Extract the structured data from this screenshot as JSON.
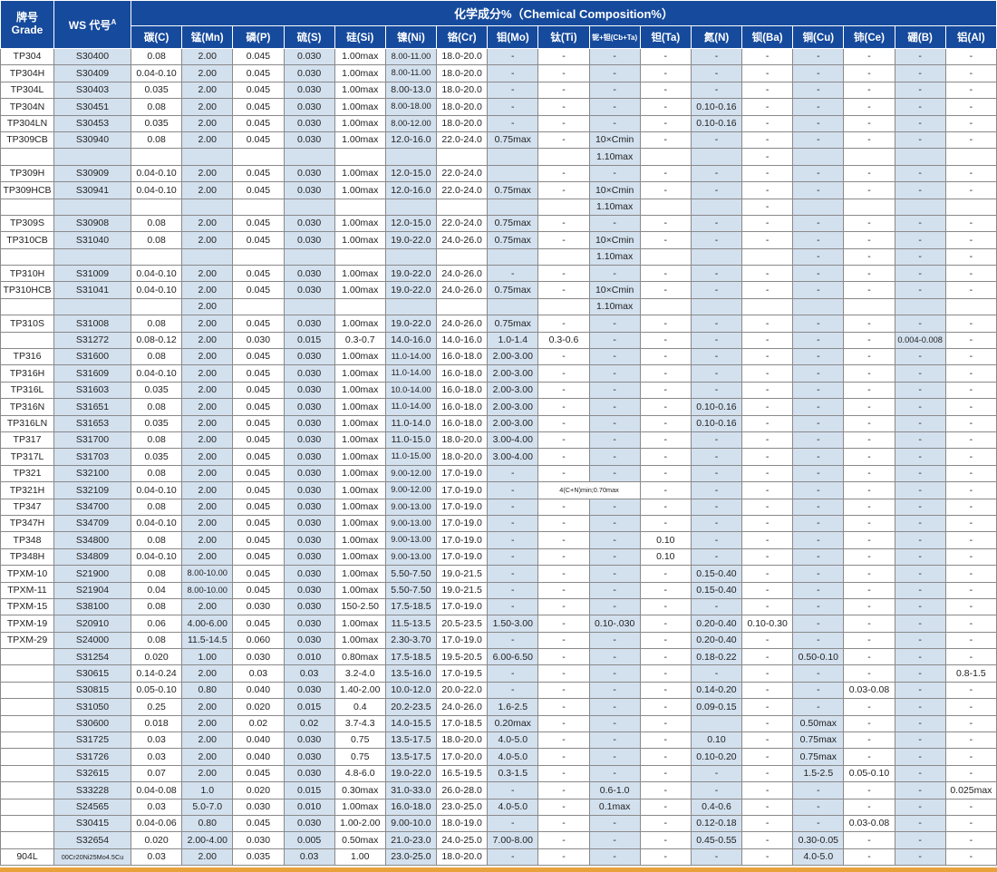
{
  "colors": {
    "header_blue": "#164a9c",
    "stripe_blue": "#d3e0ee",
    "grid_gray": "#898989",
    "text_dark": "#222222",
    "accent_orange": "#e9a23b"
  },
  "table": {
    "grade_label": "牌号",
    "grade_sublabel": "Grade",
    "ws_label": "WS 代号",
    "ws_superscript": "A",
    "composition_label": "化学成分%（Chemical Composition%）",
    "columns": [
      "碳(C)",
      "锰(Mn)",
      "磷(P)",
      "硫(S)",
      "硅(Si)",
      "镍(Ni)",
      "铬(Cr)",
      "钼(Mo)",
      "钛(Ti)",
      "铌+钽(Cb+Ta)",
      "钽(Ta)",
      "氮(N)",
      "钡(Ba)",
      "铜(Cu)",
      "铈(Ce)",
      "硼(B)",
      "铝(Al)"
    ],
    "rows": [
      [
        "TP304",
        "S30400",
        "0.08",
        "2.00",
        "0.045",
        "0.030",
        "1.00max",
        "8.00-11.00",
        "18.0-20.0",
        "-",
        "-",
        "-",
        "-",
        "-",
        "-",
        "-",
        "-",
        "-",
        "-"
      ],
      [
        "TP304H",
        "S30409",
        "0.04-0.10",
        "2.00",
        "0.045",
        "0.030",
        "1.00max",
        "8.00-11.00",
        "18.0-20.0",
        "-",
        "-",
        "-",
        "-",
        "-",
        "-",
        "-",
        "-",
        "-",
        "-"
      ],
      [
        "TP304L",
        "S30403",
        "0.035",
        "2.00",
        "0.045",
        "0.030",
        "1.00max",
        "8.00-13.0",
        "18.0-20.0",
        "-",
        "-",
        "-",
        "-",
        "-",
        "-",
        "-",
        "-",
        "-",
        "-"
      ],
      [
        "TP304N",
        "S30451",
        "0.08",
        "2.00",
        "0.045",
        "0.030",
        "1.00max",
        "8.00-18.00",
        "18.0-20.0",
        "-",
        "-",
        "-",
        "-",
        "0.10-0.16",
        "-",
        "-",
        "-",
        "-",
        "-"
      ],
      [
        "TP304LN",
        "S30453",
        "0.035",
        "2.00",
        "0.045",
        "0.030",
        "1.00max",
        "8.00-12.00",
        "18.0-20.0",
        "-",
        "-",
        "-",
        "-",
        "0.10-0.16",
        "-",
        "-",
        "-",
        "-",
        "-"
      ],
      [
        "TP309CB",
        "S30940",
        "0.08",
        "2.00",
        "0.045",
        "0.030",
        "1.00max",
        "12.0-16.0",
        "22.0-24.0",
        "0.75max",
        "-",
        "10×Cmin",
        "-",
        "-",
        "-",
        "-",
        "-",
        "-",
        "-"
      ],
      [
        "",
        "",
        "",
        "",
        "",
        "",
        "",
        "",
        "",
        "",
        "",
        "1.10max",
        "",
        "",
        "-",
        "",
        "",
        "",
        ""
      ],
      [
        "TP309H",
        "S30909",
        "0.04-0.10",
        "2.00",
        "0.045",
        "0.030",
        "1.00max",
        "12.0-15.0",
        "22.0-24.0",
        "",
        "-",
        "-",
        "-",
        "-",
        "-",
        "-",
        "-",
        "-",
        "-"
      ],
      [
        "TP309HCB",
        "S30941",
        "0.04-0.10",
        "2.00",
        "0.045",
        "0.030",
        "1.00max",
        "12.0-16.0",
        "22.0-24.0",
        "0.75max",
        "-",
        "10×Cmin",
        "-",
        "-",
        "-",
        "-",
        "-",
        "-",
        "-"
      ],
      [
        "",
        "",
        "",
        "",
        "",
        "",
        "",
        "",
        "",
        "",
        "",
        "1.10max",
        "",
        "",
        "-",
        "",
        "",
        "",
        ""
      ],
      [
        "TP309S",
        "S30908",
        "0.08",
        "2.00",
        "0.045",
        "0.030",
        "1.00max",
        "12.0-15.0",
        "22.0-24.0",
        "0.75max",
        "-",
        "-",
        "-",
        "-",
        "-",
        "-",
        "-",
        "-",
        "-"
      ],
      [
        "TP310CB",
        "S31040",
        "0.08",
        "2.00",
        "0.045",
        "0.030",
        "1.00max",
        "19.0-22.0",
        "24.0-26.0",
        "0.75max",
        "-",
        "10×Cmin",
        "-",
        "-",
        "-",
        "-",
        "-",
        "-",
        "-"
      ],
      [
        "",
        "",
        "",
        "",
        "",
        "",
        "",
        "",
        "",
        "",
        "",
        "1.10max",
        "",
        "",
        "",
        "-",
        "-",
        "-",
        "-"
      ],
      [
        "TP310H",
        "S31009",
        "0.04-0.10",
        "2.00",
        "0.045",
        "0.030",
        "1.00max",
        "19.0-22.0",
        "24.0-26.0",
        "-",
        "-",
        "-",
        "-",
        "-",
        "-",
        "-",
        "-",
        "-",
        "-"
      ],
      [
        "TP310HCB",
        "S31041",
        "0.04-0.10",
        "2.00",
        "0.045",
        "0.030",
        "1.00max",
        "19.0-22.0",
        "24.0-26.0",
        "0.75max",
        "-",
        "10×Cmin",
        "-",
        "-",
        "-",
        "-",
        "-",
        "-",
        "-"
      ],
      [
        "",
        "",
        "",
        "2.00",
        "",
        "",
        "",
        "",
        "",
        "",
        "",
        "1.10max",
        "",
        "",
        "",
        "",
        "",
        "",
        ""
      ],
      [
        "TP310S",
        "S31008",
        "0.08",
        "2.00",
        "0.045",
        "0.030",
        "1.00max",
        "19.0-22.0",
        "24.0-26.0",
        "0.75max",
        "-",
        "-",
        "-",
        "-",
        "-",
        "-",
        "-",
        "-",
        "-"
      ],
      [
        "",
        "S31272",
        "0.08-0.12",
        "2.00",
        "0.030",
        "0.015",
        "0.3-0.7",
        "14.0-16.0",
        "14.0-16.0",
        "1.0-1.4",
        "0.3-0.6",
        "-",
        "-",
        "-",
        "-",
        "-",
        "-",
        "0.004-0.008",
        "-"
      ],
      [
        "TP316",
        "S31600",
        "0.08",
        "2.00",
        "0.045",
        "0.030",
        "1.00max",
        "11.0-14.00",
        "16.0-18.0",
        "2.00-3.00",
        "-",
        "-",
        "-",
        "-",
        "-",
        "-",
        "-",
        "-",
        "-"
      ],
      [
        "TP316H",
        "S31609",
        "0.04-0.10",
        "2.00",
        "0.045",
        "0.030",
        "1.00max",
        "11.0-14.00",
        "16.0-18.0",
        "2.00-3.00",
        "-",
        "-",
        "-",
        "-",
        "-",
        "-",
        "-",
        "-",
        "-"
      ],
      [
        "TP316L",
        "S31603",
        "0.035",
        "2.00",
        "0.045",
        "0.030",
        "1.00max",
        "10.0-14.00",
        "16.0-18.0",
        "2.00-3.00",
        "-",
        "-",
        "-",
        "-",
        "-",
        "-",
        "-",
        "-",
        "-"
      ],
      [
        "TP316N",
        "S31651",
        "0.08",
        "2.00",
        "0.045",
        "0.030",
        "1.00max",
        "11.0-14.00",
        "16.0-18.0",
        "2.00-3.00",
        "-",
        "-",
        "-",
        "0.10-0.16",
        "-",
        "-",
        "-",
        "-",
        "-"
      ],
      [
        "TP316LN",
        "S31653",
        "0.035",
        "2.00",
        "0.045",
        "0.030",
        "1.00max",
        "11.0-14.0",
        "16.0-18.0",
        "2.00-3.00",
        "-",
        "-",
        "-",
        "0.10-0.16",
        "-",
        "-",
        "-",
        "-",
        "-"
      ],
      [
        "TP317",
        "S31700",
        "0.08",
        "2.00",
        "0.045",
        "0.030",
        "1.00max",
        "11.0-15.0",
        "18.0-20.0",
        "3.00-4.00",
        "-",
        "-",
        "-",
        "-",
        "-",
        "-",
        "-",
        "-",
        "-"
      ],
      [
        "TP317L",
        "S31703",
        "0.035",
        "2.00",
        "0.045",
        "0.030",
        "1.00max",
        "11.0-15.00",
        "18.0-20.0",
        "3.00-4.00",
        "-",
        "-",
        "-",
        "-",
        "-",
        "-",
        "-",
        "-",
        "-"
      ],
      [
        "TP321",
        "S32100",
        "0.08",
        "2.00",
        "0.045",
        "0.030",
        "1.00max",
        "9.00-12.00",
        "17.0-19.0",
        "-",
        "-",
        "-",
        "-",
        "-",
        "-",
        "-",
        "-",
        "-",
        "-"
      ],
      [
        "TP321H",
        "S32109",
        "0.04-0.10",
        "2.00",
        "0.045",
        "0.030",
        "1.00max",
        "9.00-12.00",
        "17.0-19.0",
        "-",
        "4(C+N)min;0.70max",
        "",
        "-",
        "-",
        "-",
        "-",
        "-",
        "-",
        "-"
      ],
      [
        "TP347",
        "S34700",
        "0.08",
        "2.00",
        "0.045",
        "0.030",
        "1.00max",
        "9.00-13.00",
        "17.0-19.0",
        "-",
        "-",
        "-",
        "-",
        "-",
        "-",
        "-",
        "-",
        "-",
        "-"
      ],
      [
        "TP347H",
        "S34709",
        "0.04-0.10",
        "2.00",
        "0.045",
        "0.030",
        "1.00max",
        "9.00-13.00",
        "17.0-19.0",
        "-",
        "-",
        "-",
        "-",
        "-",
        "-",
        "-",
        "-",
        "-",
        "-"
      ],
      [
        "TP348",
        "S34800",
        "0.08",
        "2.00",
        "0.045",
        "0.030",
        "1.00max",
        "9.00-13.00",
        "17.0-19.0",
        "-",
        "-",
        "-",
        "0.10",
        "-",
        "-",
        "-",
        "-",
        "-",
        "-"
      ],
      [
        "TP348H",
        "S34809",
        "0.04-0.10",
        "2.00",
        "0.045",
        "0.030",
        "1.00max",
        "9.00-13.00",
        "17.0-19.0",
        "-",
        "-",
        "-",
        "0.10",
        "-",
        "-",
        "-",
        "-",
        "-",
        "-"
      ],
      [
        "TPXM-10",
        "S21900",
        "0.08",
        "8.00-10.00",
        "0.045",
        "0.030",
        "1.00max",
        "5.50-7.50",
        "19.0-21.5",
        "-",
        "-",
        "-",
        "-",
        "0.15-0.40",
        "-",
        "-",
        "-",
        "-",
        "-"
      ],
      [
        "TPXM-11",
        "S21904",
        "0.04",
        "8.00-10.00",
        "0.045",
        "0.030",
        "1.00max",
        "5.50-7.50",
        "19.0-21.5",
        "-",
        "-",
        "-",
        "-",
        "0.15-0.40",
        "-",
        "-",
        "-",
        "-",
        "-"
      ],
      [
        "TPXM-15",
        "S38100",
        "0.08",
        "2.00",
        "0.030",
        "0.030",
        "150-2.50",
        "17.5-18.5",
        "17.0-19.0",
        "-",
        "-",
        "-",
        "-",
        "-",
        "-",
        "-",
        "-",
        "-",
        "-"
      ],
      [
        "TPXM-19",
        "S20910",
        "0.06",
        "4.00-6.00",
        "0.045",
        "0.030",
        "1.00max",
        "11.5-13.5",
        "20.5-23.5",
        "1.50-3.00",
        "-",
        "0.10-.030",
        "-",
        "0.20-0.40",
        "0.10-0.30",
        "-",
        "-",
        "-",
        "-"
      ],
      [
        "TPXM-29",
        "S24000",
        "0.08",
        "11.5-14.5",
        "0.060",
        "0.030",
        "1.00max",
        "2.30-3.70",
        "17.0-19.0",
        "-",
        "-",
        "-",
        "-",
        "0.20-0.40",
        "-",
        "-",
        "-",
        "-",
        "-"
      ],
      [
        "",
        "S31254",
        "0.020",
        "1.00",
        "0.030",
        "0.010",
        "0.80max",
        "17.5-18.5",
        "19.5-20.5",
        "6.00-6.50",
        "-",
        "-",
        "-",
        "0.18-0.22",
        "-",
        "0.50-0.10",
        "-",
        "-",
        "-"
      ],
      [
        "",
        "S30615",
        "0.14-0.24",
        "2.00",
        "0.03",
        "0.03",
        "3.2-4.0",
        "13.5-16.0",
        "17.0-19.5",
        "-",
        "-",
        "-",
        "-",
        "-",
        "-",
        "-",
        "-",
        "-",
        "0.8-1.5"
      ],
      [
        "",
        "S30815",
        "0.05-0.10",
        "0.80",
        "0.040",
        "0.030",
        "1.40-2.00",
        "10.0-12.0",
        "20.0-22.0",
        "-",
        "-",
        "-",
        "-",
        "0.14-0.20",
        "-",
        "-",
        "0.03-0.08",
        "-",
        "-"
      ],
      [
        "",
        "S31050",
        "0.25",
        "2.00",
        "0.020",
        "0.015",
        "0.4",
        "20.2-23.5",
        "24.0-26.0",
        "1.6-2.5",
        "-",
        "-",
        "-",
        "0.09-0.15",
        "-",
        "-",
        "-",
        "-",
        "-"
      ],
      [
        "",
        "S30600",
        "0.018",
        "2.00",
        "0.02",
        "0.02",
        "3.7-4.3",
        "14.0-15.5",
        "17.0-18.5",
        "0.20max",
        "-",
        "-",
        "-",
        "",
        "-",
        "0.50max",
        "-",
        "-",
        "-"
      ],
      [
        "",
        "S31725",
        "0.03",
        "2.00",
        "0.040",
        "0.030",
        "0.75",
        "13.5-17.5",
        "18.0-20.0",
        "4.0-5.0",
        "-",
        "-",
        "-",
        "0.10",
        "-",
        "0.75max",
        "-",
        "-",
        "-"
      ],
      [
        "",
        "S31726",
        "0.03",
        "2.00",
        "0.040",
        "0.030",
        "0.75",
        "13.5-17.5",
        "17.0-20.0",
        "4.0-5.0",
        "-",
        "-",
        "-",
        "0.10-0.20",
        "-",
        "0.75max",
        "-",
        "-",
        "-"
      ],
      [
        "",
        "S32615",
        "0.07",
        "2.00",
        "0.045",
        "0.030",
        "4.8-6.0",
        "19.0-22.0",
        "16.5-19.5",
        "0.3-1.5",
        "-",
        "-",
        "-",
        "-",
        "-",
        "1.5-2.5",
        "0.05-0.10",
        "-",
        "-"
      ],
      [
        "",
        "S33228",
        "0.04-0.08",
        "1.0",
        "0.020",
        "0.015",
        "0.30max",
        "31.0-33.0",
        "26.0-28.0",
        "-",
        "-",
        "0.6-1.0",
        "-",
        "-",
        "-",
        "-",
        "-",
        "-",
        "0.025max"
      ],
      [
        "",
        "S24565",
        "0.03",
        "5.0-7.0",
        "0.030",
        "0.010",
        "1.00max",
        "16.0-18.0",
        "23.0-25.0",
        "4.0-5.0",
        "-",
        "0.1max",
        "-",
        "0.4-0.6",
        "-",
        "-",
        "-",
        "-",
        "-"
      ],
      [
        "",
        "S30415",
        "0.04-0.06",
        "0.80",
        "0.045",
        "0.030",
        "1.00-2.00",
        "9.00-10.0",
        "18.0-19.0",
        "-",
        "-",
        "-",
        "-",
        "0.12-0.18",
        "-",
        "-",
        "0.03-0.08",
        "-",
        "-"
      ],
      [
        "",
        "S32654",
        "0.020",
        "2.00-4.00",
        "0.030",
        "0.005",
        "0.50max",
        "21.0-23.0",
        "24.0-25.0",
        "7.00-8.00",
        "-",
        "-",
        "-",
        "0.45-0.55",
        "-",
        "0.30-0.05",
        "-",
        "-",
        "-"
      ],
      [
        "904L",
        "00Cr20Ni25Mo4.5Cu",
        "0.03",
        "2.00",
        "0.035",
        "0.03",
        "1.00",
        "23.0-25.0",
        "18.0-20.0",
        "-",
        "-",
        "-",
        "-",
        "-",
        "-",
        "4.0-5.0",
        "-",
        "-",
        "-"
      ]
    ],
    "merges": [
      {
        "row": 26,
        "col": 10,
        "colspan": 2
      }
    ]
  }
}
